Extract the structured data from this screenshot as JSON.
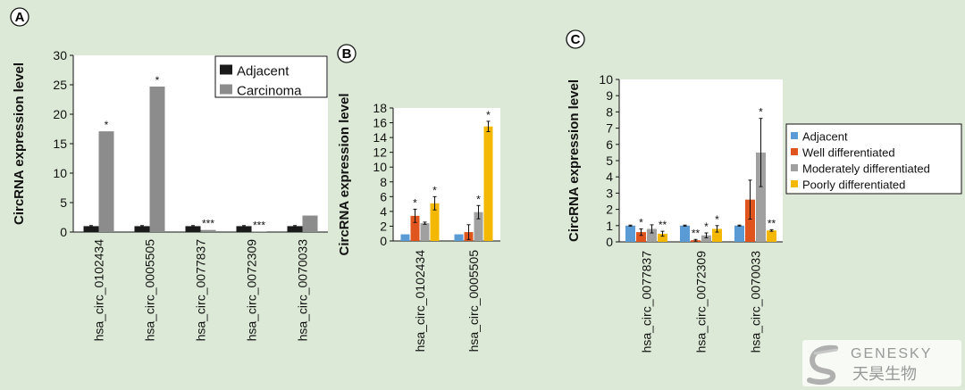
{
  "chart_data": [
    {
      "panel": "A",
      "type": "bar",
      "ylabel": "CircRNA expression level",
      "ylim": [
        0,
        30
      ],
      "yticks": [
        0,
        5,
        10,
        15,
        20,
        25,
        30
      ],
      "categories": [
        "hsa_circ_0102434",
        "hsa_circ_0005505",
        "hsa_circ_0077837",
        "hsa_circ_0072309",
        "hsa_circ_0070033"
      ],
      "series": [
        {
          "name": "Adjacent",
          "color": "#1a1a1a",
          "values": [
            1,
            1,
            1,
            1,
            1
          ],
          "errors": [
            0.1,
            0.1,
            0.1,
            0.1,
            0.1
          ]
        },
        {
          "name": "Carcinoma",
          "color": "#8c8c8c",
          "values": [
            17.1,
            24.7,
            0.35,
            0.1,
            2.8
          ],
          "errors": [
            0,
            0,
            0,
            0,
            0
          ]
        }
      ],
      "significance": [
        [
          "",
          "*"
        ],
        [
          "",
          "*"
        ],
        [
          "",
          "***"
        ],
        [
          "",
          "***"
        ],
        [
          "",
          ""
        ]
      ],
      "legend_position": "top-right"
    },
    {
      "panel": "B",
      "type": "bar",
      "ylabel": "CircRNA expression level",
      "ylim": [
        0,
        18
      ],
      "yticks": [
        0,
        2,
        4,
        6,
        8,
        10,
        12,
        14,
        16,
        18
      ],
      "categories": [
        "hsa_circ_0102434",
        "hsa_circ_0005505"
      ],
      "series": [
        {
          "name": "Adjacent",
          "color": "#5b9bd5",
          "values": [
            0.9,
            0.9
          ],
          "errors": [
            0,
            0
          ]
        },
        {
          "name": "Well differentiated",
          "color": "#e0541d",
          "values": [
            3.4,
            1.2
          ],
          "errors": [
            0.9,
            1.0
          ]
        },
        {
          "name": "Moderately differentiated",
          "color": "#a0a0a0",
          "values": [
            2.4,
            3.9
          ],
          "errors": [
            0.15,
            0.9
          ]
        },
        {
          "name": "Poorly differentiated",
          "color": "#f5b800",
          "values": [
            5.1,
            15.5
          ],
          "errors": [
            0.9,
            0.7
          ]
        }
      ],
      "significance": [
        [
          "",
          "*",
          "",
          "*"
        ],
        [
          "",
          "",
          "*",
          "*"
        ]
      ]
    },
    {
      "panel": "C",
      "type": "bar",
      "ylabel": "CircRNA expression level",
      "ylim": [
        0,
        10
      ],
      "yticks": [
        0,
        1,
        2,
        3,
        4,
        5,
        6,
        7,
        8,
        9,
        10
      ],
      "categories": [
        "hsa_circ_0077837",
        "hsa_circ_0072309",
        "hsa_circ_0070033"
      ],
      "series": [
        {
          "name": "Adjacent",
          "color": "#5b9bd5",
          "values": [
            1,
            1,
            1
          ],
          "errors": [
            0.03,
            0.03,
            0.03
          ]
        },
        {
          "name": "Well differentiated",
          "color": "#e0541d",
          "values": [
            0.6,
            0.1,
            2.6
          ],
          "errors": [
            0.2,
            0.05,
            1.2
          ]
        },
        {
          "name": "Moderately differentiated",
          "color": "#a0a0a0",
          "values": [
            0.8,
            0.4,
            5.5
          ],
          "errors": [
            0.25,
            0.15,
            2.1
          ]
        },
        {
          "name": "Poorly differentiated",
          "color": "#f5b800",
          "values": [
            0.5,
            0.8,
            0.7
          ],
          "errors": [
            0.15,
            0.2,
            0.05
          ]
        }
      ],
      "significance": [
        [
          "",
          "*",
          "",
          "**"
        ],
        [
          "",
          "**",
          "*",
          "*"
        ],
        [
          "",
          "",
          "*",
          "**"
        ]
      ],
      "legend_position": "right"
    }
  ],
  "watermark": {
    "latin": "GENESKY",
    "chinese": "天昊生物"
  }
}
